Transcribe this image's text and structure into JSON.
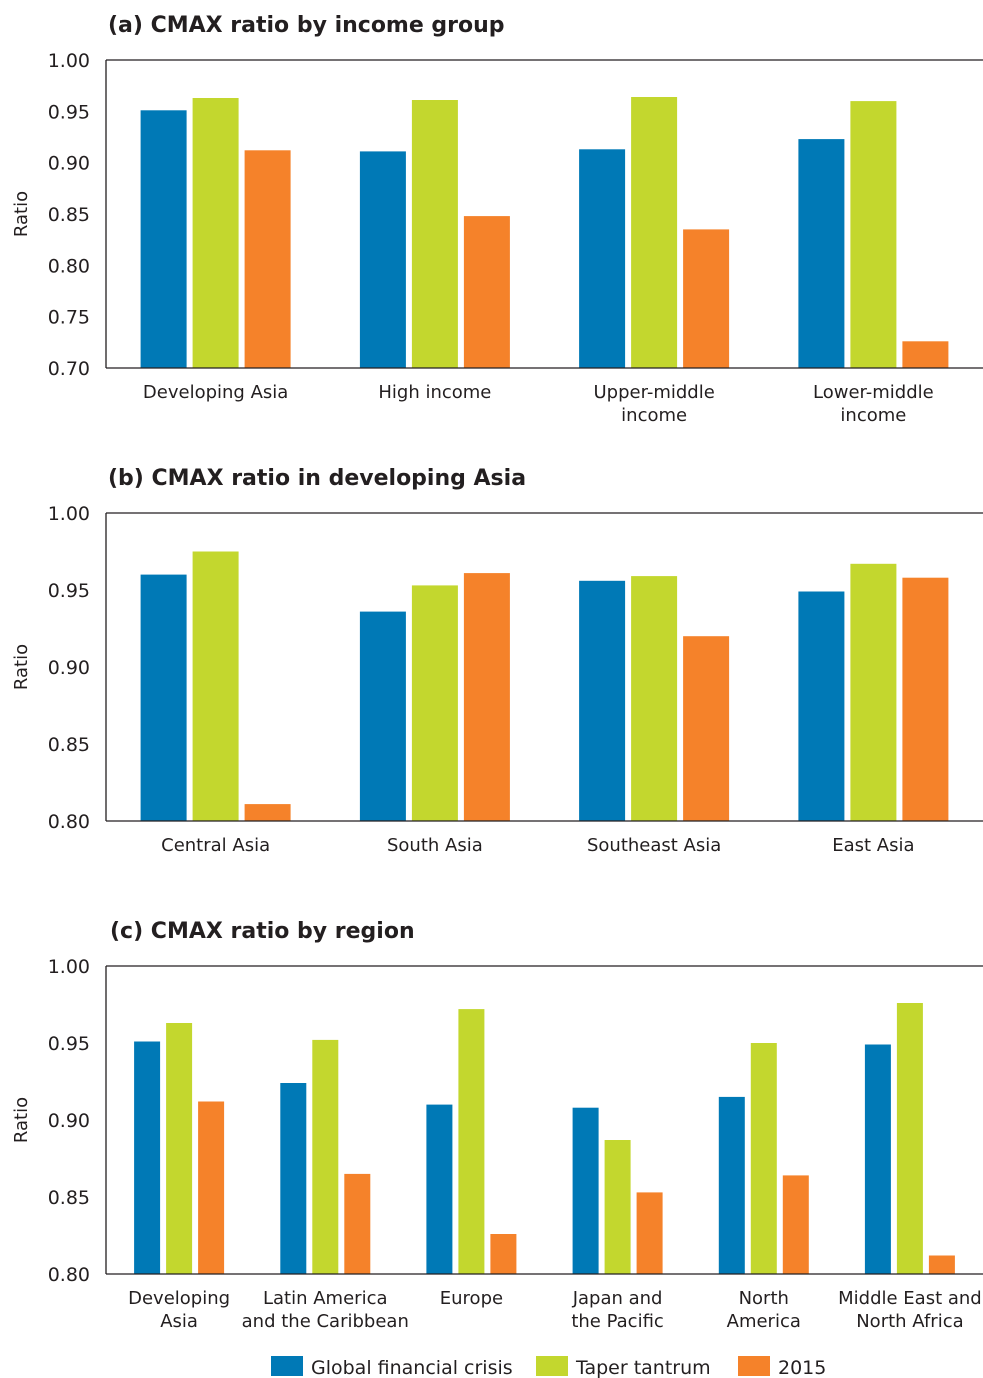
{
  "colors": {
    "global_financial_crisis": "#0079b6",
    "taper_tantrum": "#c3d72e",
    "year_2015": "#f5822a",
    "text": "#231f20",
    "axis": "#231f20"
  },
  "legend": {
    "items": [
      {
        "label": "Global financial crisis",
        "color": "#0079b6"
      },
      {
        "label": "Taper tantrum",
        "color": "#c3d72e"
      },
      {
        "label": "2015",
        "color": "#f5822a"
      }
    ]
  },
  "chart_data": [
    {
      "type": "bar",
      "title": "(a)   CMAX ratio by income group",
      "ylabel": "Ratio",
      "ylim": [
        0.7,
        1.0
      ],
      "yticks": [
        "0.70",
        "0.75",
        "0.80",
        "0.85",
        "0.90",
        "0.95",
        "1.00"
      ],
      "categories": [
        [
          "Developing Asia"
        ],
        [
          "High income"
        ],
        [
          "Upper-middle",
          "income"
        ],
        [
          "Lower-middle",
          "income"
        ]
      ],
      "series": [
        {
          "name": "Global financial crisis",
          "values": [
            0.951,
            0.911,
            0.913,
            0.923
          ]
        },
        {
          "name": "Taper tantrum",
          "values": [
            0.963,
            0.961,
            0.964,
            0.96
          ]
        },
        {
          "name": "2015",
          "values": [
            0.912,
            0.848,
            0.835,
            0.726
          ]
        }
      ]
    },
    {
      "type": "bar",
      "title": "(b)   CMAX ratio in developing Asia",
      "ylabel": "Ratio",
      "ylim": [
        0.8,
        1.0
      ],
      "yticks": [
        "0.80",
        "0.85",
        "0.90",
        "0.95",
        "1.00"
      ],
      "categories": [
        [
          "Central Asia"
        ],
        [
          "South Asia"
        ],
        [
          "Southeast Asia"
        ],
        [
          "East Asia"
        ]
      ],
      "series": [
        {
          "name": "Global financial crisis",
          "values": [
            0.96,
            0.936,
            0.956,
            0.949
          ]
        },
        {
          "name": "Taper tantrum",
          "values": [
            0.975,
            0.953,
            0.959,
            0.967
          ]
        },
        {
          "name": "2015",
          "values": [
            0.811,
            0.961,
            0.92,
            0.958
          ]
        }
      ]
    },
    {
      "type": "bar",
      "title": "(c)   CMAX ratio by region",
      "ylabel": "Ratio",
      "ylim": [
        0.8,
        1.0
      ],
      "yticks": [
        "0.80",
        "0.85",
        "0.90",
        "0.95",
        "1.00"
      ],
      "categories": [
        [
          "Developing",
          "Asia"
        ],
        [
          "Latin America",
          "and the Caribbean"
        ],
        [
          "Europe"
        ],
        [
          "Japan and",
          "the Pacific"
        ],
        [
          "North",
          "America"
        ],
        [
          "Middle East and",
          "North Africa"
        ]
      ],
      "series": [
        {
          "name": "Global financial crisis",
          "values": [
            0.951,
            0.924,
            0.91,
            0.908,
            0.915,
            0.949
          ]
        },
        {
          "name": "Taper tantrum",
          "values": [
            0.963,
            0.952,
            0.972,
            0.887,
            0.95,
            0.976
          ]
        },
        {
          "name": "2015",
          "values": [
            0.912,
            0.865,
            0.826,
            0.853,
            0.864,
            0.812
          ]
        }
      ]
    }
  ]
}
